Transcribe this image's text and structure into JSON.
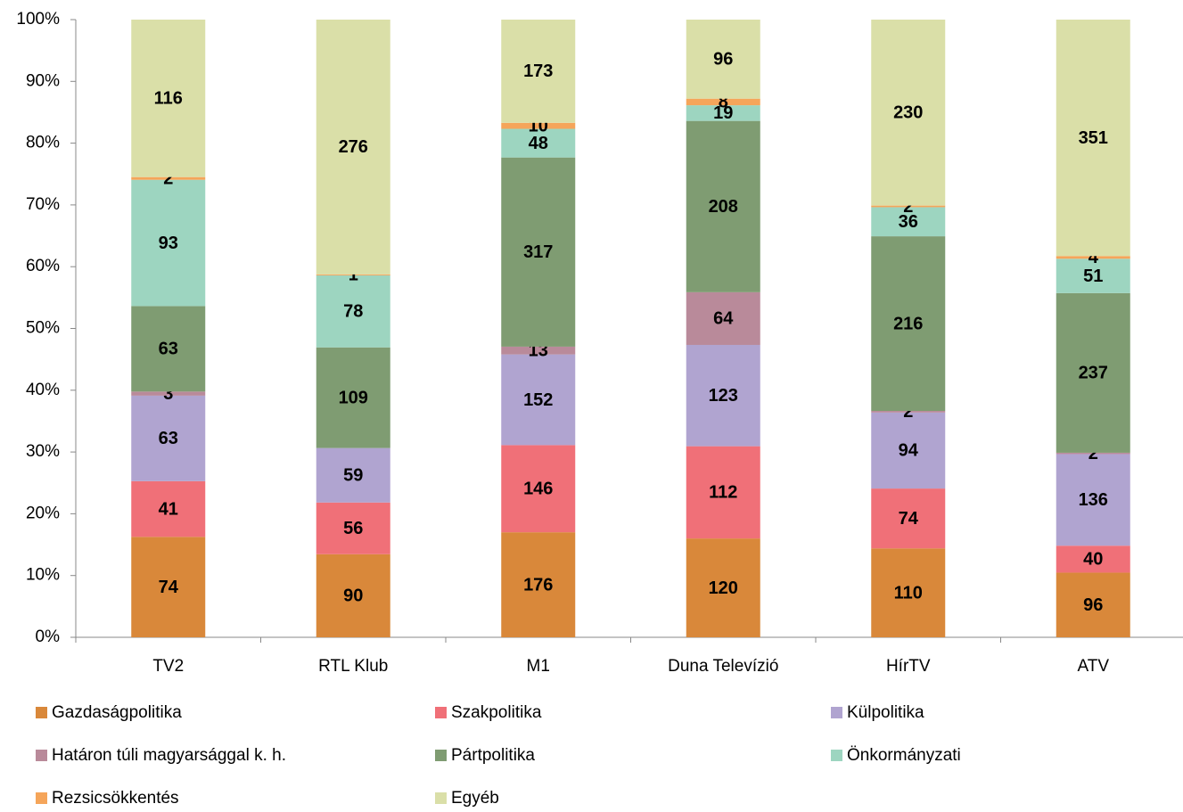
{
  "chart_data": {
    "type": "stacked_percent_bar",
    "categories": [
      "TV2",
      "RTL Klub",
      "M1",
      "Duna Televízió",
      "HírTV",
      "ATV"
    ],
    "series": [
      {
        "name": "Gazdaságpolitika",
        "color": "#d9883a",
        "values": [
          74,
          90,
          176,
          120,
          110,
          96
        ]
      },
      {
        "name": "Szakpolitika",
        "color": "#f07078",
        "values": [
          41,
          56,
          146,
          112,
          74,
          40
        ]
      },
      {
        "name": "Külpolitika",
        "color": "#b0a4d0",
        "values": [
          63,
          59,
          152,
          123,
          94,
          136
        ]
      },
      {
        "name": "Határon túli magyarsággal k. h.",
        "color": "#b98a9a",
        "values": [
          3,
          null,
          13,
          64,
          2,
          2
        ]
      },
      {
        "name": "Pártpolitika",
        "color": "#7f9c72",
        "values": [
          63,
          109,
          317,
          208,
          216,
          237
        ]
      },
      {
        "name": "Önkormányzati",
        "color": "#9dd5c0",
        "values": [
          93,
          78,
          48,
          19,
          36,
          51
        ]
      },
      {
        "name": "Rezsicsökkentés",
        "color": "#f5a55a",
        "values": [
          2,
          1,
          10,
          8,
          2,
          4
        ]
      },
      {
        "name": "Egyéb",
        "color": "#dadfa8",
        "values": [
          116,
          276,
          173,
          96,
          230,
          351
        ]
      }
    ],
    "ylim": [
      0,
      100
    ],
    "yticks": [
      {
        "value": 0,
        "label": "0%"
      },
      {
        "value": 10,
        "label": "10%"
      },
      {
        "value": 20,
        "label": "20%"
      },
      {
        "value": 30,
        "label": "30%"
      },
      {
        "value": 40,
        "label": "40%"
      },
      {
        "value": 50,
        "label": "50%"
      },
      {
        "value": 60,
        "label": "60%"
      },
      {
        "value": 70,
        "label": "70%"
      },
      {
        "value": 80,
        "label": "80%"
      },
      {
        "value": 90,
        "label": "90%"
      },
      {
        "value": 100,
        "label": "100%"
      }
    ],
    "grid": false
  }
}
